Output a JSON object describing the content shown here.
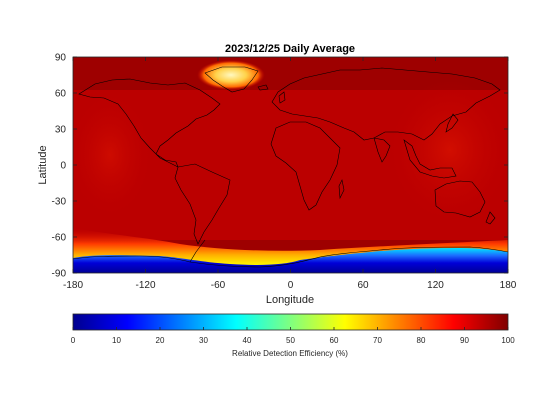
{
  "chart_data": {
    "type": "heatmap",
    "title": "2023/12/25 Daily Average",
    "xlabel": "Longitude",
    "ylabel": "Latitude",
    "xlim": [
      -180,
      180
    ],
    "ylim": [
      -90,
      90
    ],
    "x_ticks": [
      -180,
      -120,
      -60,
      0,
      60,
      120,
      180
    ],
    "y_ticks": [
      90,
      60,
      30,
      0,
      -30,
      -60,
      -90
    ],
    "colorbar": {
      "label": "Relative Detection Efficiency (%)",
      "colormap": "jet",
      "range": [
        0,
        100
      ],
      "ticks": [
        0,
        10,
        20,
        30,
        40,
        50,
        60,
        70,
        80,
        90,
        100
      ],
      "orientation": "horizontal"
    },
    "field_description_values": {
      "background_value": 95,
      "greenland_high_lat_value": 75,
      "antarctic_coast_value": 70,
      "antarctic_interior_value": 5
    },
    "colors": {
      "dark_red": "#8b0000",
      "red": "#c80000",
      "orange": "#ff8a00",
      "yellow": "#fff000",
      "cyan": "#00e8ff",
      "blue": "#0000c8",
      "coastline": "#000000"
    }
  }
}
